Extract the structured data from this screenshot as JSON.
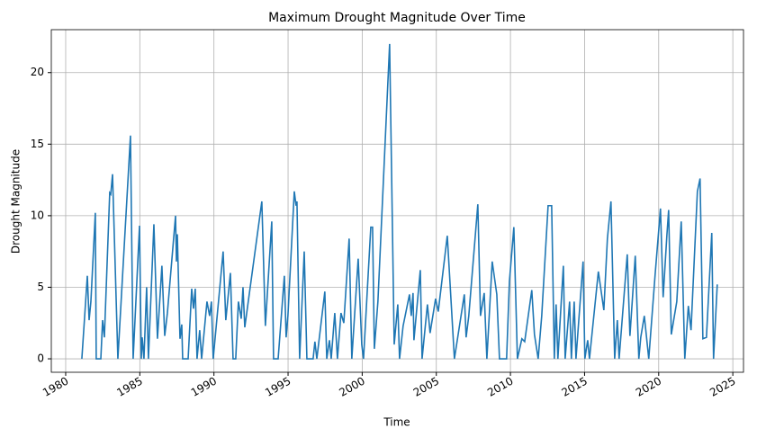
{
  "chart_data": {
    "type": "line",
    "title": "Maximum Drought Magnitude Over Time",
    "x_label": "Time",
    "y_label": "Drought Magnitude",
    "x": [
      1981.09,
      1981.46,
      1981.58,
      1981.7,
      1982.0,
      1982.06,
      1982.37,
      1982.49,
      1982.61,
      1982.97,
      1983.04,
      1983.16,
      1983.52,
      1984.37,
      1984.55,
      1984.98,
      1985.1,
      1985.16,
      1985.28,
      1985.46,
      1985.58,
      1985.95,
      1986.19,
      1986.49,
      1986.68,
      1986.86,
      1987.41,
      1987.47,
      1987.53,
      1987.71,
      1987.83,
      1987.89,
      1988.26,
      1988.5,
      1988.62,
      1988.74,
      1988.86,
      1989.04,
      1989.17,
      1989.53,
      1989.71,
      1989.83,
      1989.95,
      1990.62,
      1990.8,
      1991.11,
      1991.29,
      1991.47,
      1991.65,
      1991.84,
      1991.96,
      1992.08,
      1993.23,
      1993.47,
      1993.9,
      1994.02,
      1994.33,
      1994.75,
      1994.87,
      1994.99,
      1995.42,
      1995.54,
      1995.6,
      1995.78,
      1996.09,
      1996.27,
      1996.69,
      1996.81,
      1996.94,
      1997.48,
      1997.61,
      1997.79,
      1997.91,
      1998.15,
      1998.33,
      1998.57,
      1998.76,
      1999.12,
      1999.3,
      1999.73,
      1999.97,
      2000.09,
      2000.58,
      2000.7,
      2000.82,
      2001.06,
      2001.85,
      2002.16,
      2002.4,
      2002.52,
      2002.76,
      2003.19,
      2003.31,
      2003.43,
      2003.49,
      2003.92,
      2004.04,
      2004.4,
      2004.58,
      2004.95,
      2005.13,
      2005.74,
      2006.22,
      2006.89,
      2007.01,
      2007.19,
      2007.8,
      2007.98,
      2008.23,
      2008.41,
      2008.77,
      2009.08,
      2009.26,
      2009.74,
      2009.93,
      2010.23,
      2010.47,
      2010.77,
      2010.96,
      2011.44,
      2011.62,
      2011.87,
      2012.11,
      2012.54,
      2012.78,
      2012.96,
      2013.08,
      2013.2,
      2013.57,
      2013.69,
      2013.99,
      2014.11,
      2014.3,
      2014.42,
      2014.9,
      2015.02,
      2015.21,
      2015.33,
      2015.93,
      2016.3,
      2016.54,
      2016.78,
      2017.03,
      2017.21,
      2017.33,
      2017.88,
      2018.06,
      2018.42,
      2018.66,
      2018.79,
      2019.03,
      2019.33,
      2019.76,
      2020.12,
      2020.3,
      2020.55,
      2020.67,
      2020.85,
      2021.22,
      2021.52,
      2021.76,
      2022.0,
      2022.18,
      2022.61,
      2022.79,
      2022.98,
      2023.22,
      2023.58,
      2023.7,
      2023.95
    ],
    "series": [
      {
        "name": "Maximum Drought Magnitude",
        "color": "#1f77b4",
        "values": [
          0,
          5.8,
          2.7,
          4,
          10.2,
          0,
          0,
          2.7,
          1.5,
          11.6,
          11.5,
          12.9,
          0,
          15.6,
          0,
          9.3,
          0,
          1.5,
          0,
          5,
          0,
          9.4,
          1.4,
          6.5,
          1.6,
          3.2,
          10,
          6.8,
          8.7,
          1.4,
          2.4,
          0,
          0,
          4.9,
          3.5,
          4.9,
          0,
          2,
          0,
          4,
          3,
          4,
          0,
          7.5,
          2.7,
          6,
          0,
          0,
          4,
          2.8,
          5,
          2.2,
          11,
          2.3,
          9.6,
          0,
          0,
          5.8,
          1.5,
          3,
          11.7,
          10.7,
          11,
          0,
          7.5,
          0,
          0,
          1.2,
          0,
          4.7,
          0,
          1.3,
          0,
          3.2,
          0,
          3.2,
          2.5,
          8.4,
          0,
          7,
          1,
          0,
          9.2,
          9.2,
          0.7,
          4,
          22,
          1,
          3.8,
          0,
          2.3,
          4.5,
          3,
          4.6,
          1.3,
          6.2,
          0,
          3.8,
          1.8,
          4.2,
          3.3,
          8.6,
          0,
          4.5,
          1.5,
          3,
          10.8,
          3,
          4.6,
          0,
          6.8,
          4.5,
          0,
          0,
          5.4,
          9.2,
          0,
          1.4,
          1.2,
          4.8,
          1.7,
          0,
          3,
          10.7,
          10.7,
          0,
          3.8,
          0,
          6.5,
          0,
          4,
          0,
          4,
          0,
          6.8,
          0,
          1.3,
          0,
          6.1,
          3.4,
          8.4,
          11,
          0,
          2.7,
          0,
          7.3,
          1.6,
          7.2,
          0,
          1.5,
          3,
          0,
          5.9,
          10.5,
          4.3,
          8.6,
          10.4,
          1.7,
          4,
          9.6,
          0,
          3.7,
          2,
          11.7,
          12.6,
          1.4,
          1.5,
          8.8,
          0,
          5.2
        ]
      }
    ],
    "xlim": [
      1979.03,
      2025.72
    ],
    "xticks": [
      1980,
      1985,
      1990,
      1995,
      2000,
      2005,
      2010,
      2015,
      2020,
      2025
    ],
    "ylim": [
      -0.94,
      23.0
    ],
    "yticks": [
      0,
      5,
      10,
      15,
      20
    ],
    "grid": true
  }
}
